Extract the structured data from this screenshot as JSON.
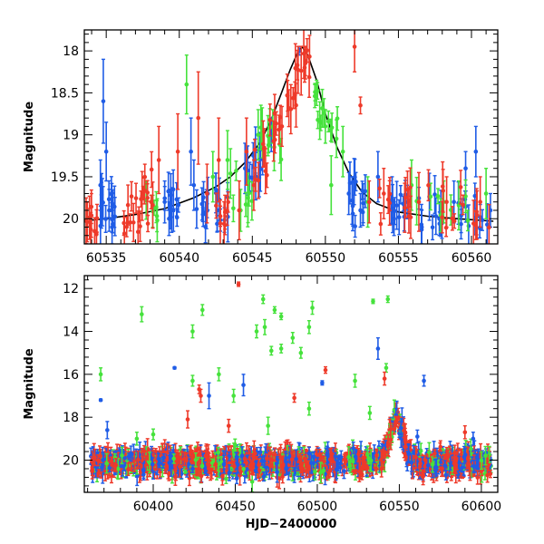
{
  "chart_data": [
    {
      "type": "scatter",
      "panel": "top",
      "title": "",
      "xlabel": "",
      "ylabel": "Magnitude",
      "xlim": [
        60533.5,
        60561.8
      ],
      "ylim": [
        20.3,
        17.75
      ],
      "y_inverted": true,
      "grid": false,
      "x_ticks": [
        60535,
        60540,
        60545,
        60550,
        60555,
        60560
      ],
      "x_tick_labels": [
        "60535",
        "60540",
        "60545",
        "60550",
        "60555",
        "60560"
      ],
      "y_ticks": [
        18,
        18.5,
        19,
        19.5,
        20
      ],
      "y_tick_labels": [
        "18",
        "18.5",
        "19",
        "19.5",
        "20"
      ],
      "colors": {
        "blue": "#1f5ce6",
        "green": "#46e23c",
        "red": "#ee3a2a",
        "model": "#000000"
      },
      "model_curve": {
        "x": [
          60533.8,
          60535,
          60537,
          60539,
          60541,
          60542.5,
          60543.5,
          60544.5,
          60545.5,
          60546.3,
          60547,
          60547.6,
          60548.1,
          60548.4,
          60548.8,
          60549.4,
          60550,
          60550.8,
          60551.6,
          60552.5,
          60553.5,
          60555,
          60557,
          60559,
          60561.5
        ],
        "y": [
          20.02,
          20.0,
          19.95,
          19.88,
          19.75,
          19.62,
          19.5,
          19.33,
          19.1,
          18.82,
          18.5,
          18.22,
          18.02,
          17.95,
          18.05,
          18.35,
          18.75,
          19.15,
          19.45,
          19.68,
          19.82,
          19.92,
          19.97,
          20.0,
          20.03
        ]
      },
      "series": [
        {
          "color": "blue",
          "points": [
            {
              "x": 60534.6,
              "y": 19.6,
              "err": 0.3
            },
            {
              "x": 60534.8,
              "y": 18.6,
              "err": 0.5
            },
            {
              "x": 60535.0,
              "y": 19.2,
              "err": 0.35
            },
            {
              "x": 60535.2,
              "y": 19.9,
              "err": 0.25
            },
            {
              "x": 60535.4,
              "y": 20.1,
              "err": 0.2
            },
            {
              "x": 60539.0,
              "y": 19.8,
              "err": 0.25
            },
            {
              "x": 60539.3,
              "y": 20.0,
              "err": 0.2
            },
            {
              "x": 60539.6,
              "y": 19.9,
              "err": 0.25
            },
            {
              "x": 60540.8,
              "y": 19.2,
              "err": 0.4
            },
            {
              "x": 60541.0,
              "y": 19.6,
              "err": 0.3
            },
            {
              "x": 60542.6,
              "y": 19.9,
              "err": 0.25
            },
            {
              "x": 60544.5,
              "y": 19.4,
              "err": 0.3
            },
            {
              "x": 60545.2,
              "y": 19.3,
              "err": 0.25
            },
            {
              "x": 60546.3,
              "y": 19.0,
              "err": 0.2
            },
            {
              "x": 60548.2,
              "y": 18.0,
              "err": 0.05
            },
            {
              "x": 60551.6,
              "y": 19.7,
              "err": 0.25
            },
            {
              "x": 60552.4,
              "y": 19.9,
              "err": 0.2
            },
            {
              "x": 60553.6,
              "y": 19.5,
              "err": 0.3
            },
            {
              "x": 60554.7,
              "y": 20.0,
              "err": 0.2
            },
            {
              "x": 60555.6,
              "y": 19.8,
              "err": 0.2
            },
            {
              "x": 60556.6,
              "y": 20.1,
              "err": 0.2
            },
            {
              "x": 60557.8,
              "y": 20.0,
              "err": 0.2
            },
            {
              "x": 60558.8,
              "y": 19.8,
              "err": 0.25
            },
            {
              "x": 60559.6,
              "y": 19.4,
              "err": 0.2
            },
            {
              "x": 60560.3,
              "y": 19.2,
              "err": 0.3
            },
            {
              "x": 60561.3,
              "y": 19.9,
              "err": 0.2
            }
          ],
          "clusters": [
            {
              "x0": 60534.4,
              "x1": 60535.6,
              "y0": 19.6,
              "y1": 20.15,
              "n": 14
            },
            {
              "x0": 60539.0,
              "x1": 60540.0,
              "y0": 19.6,
              "y1": 20.15,
              "n": 10
            },
            {
              "x0": 60541.0,
              "x1": 60542.0,
              "y0": 19.6,
              "y1": 20.1,
              "n": 10
            },
            {
              "x0": 60542.5,
              "x1": 60543.5,
              "y0": 19.5,
              "y1": 20.1,
              "n": 8
            },
            {
              "x0": 60544.5,
              "x1": 60546.0,
              "y0": 19.1,
              "y1": 19.7,
              "n": 10
            },
            {
              "x0": 60551.5,
              "x1": 60553.0,
              "y0": 19.5,
              "y1": 20.1,
              "n": 12
            },
            {
              "x0": 60554.0,
              "x1": 60555.5,
              "y0": 19.7,
              "y1": 20.15,
              "n": 10
            },
            {
              "x0": 60556.0,
              "x1": 60558.0,
              "y0": 19.7,
              "y1": 20.15,
              "n": 10
            },
            {
              "x0": 60559.0,
              "x1": 60561.5,
              "y0": 19.7,
              "y1": 20.15,
              "n": 12
            }
          ]
        },
        {
          "color": "green",
          "points": [
            {
              "x": 60540.5,
              "y": 18.4,
              "err": 0.35
            },
            {
              "x": 60542.3,
              "y": 19.5,
              "err": 0.3
            },
            {
              "x": 60543.3,
              "y": 19.3,
              "err": 0.35
            },
            {
              "x": 60544.2,
              "y": 19.9,
              "err": 0.25
            },
            {
              "x": 60545.4,
              "y": 19.0,
              "err": 0.3
            },
            {
              "x": 60546.4,
              "y": 18.9,
              "err": 0.2
            },
            {
              "x": 60549.4,
              "y": 18.5,
              "err": 0.15
            },
            {
              "x": 60550.0,
              "y": 18.9,
              "err": 0.2
            },
            {
              "x": 60550.4,
              "y": 19.6,
              "err": 0.35
            },
            {
              "x": 60551.2,
              "y": 19.2,
              "err": 0.3
            },
            {
              "x": 60552.9,
              "y": 19.8,
              "err": 0.3
            },
            {
              "x": 60555.9,
              "y": 19.6,
              "err": 0.3
            },
            {
              "x": 60558.1,
              "y": 19.8,
              "err": 0.25
            },
            {
              "x": 60561.0,
              "y": 19.7,
              "err": 0.3
            }
          ],
          "clusters": [
            {
              "x0": 60537.5,
              "x1": 60538.5,
              "y0": 19.7,
              "y1": 20.1,
              "n": 6
            },
            {
              "x0": 60543.5,
              "x1": 60545.0,
              "y0": 19.4,
              "y1": 20.0,
              "n": 8
            },
            {
              "x0": 60545.5,
              "x1": 60547.0,
              "y0": 18.9,
              "y1": 19.4,
              "n": 8
            },
            {
              "x0": 60549.2,
              "x1": 60550.2,
              "y0": 18.4,
              "y1": 18.9,
              "n": 8
            },
            {
              "x0": 60550.2,
              "x1": 60551.0,
              "y0": 18.8,
              "y1": 19.1,
              "n": 5
            },
            {
              "x0": 60556.0,
              "x1": 60560.0,
              "y0": 19.7,
              "y1": 20.1,
              "n": 8
            }
          ]
        },
        {
          "color": "red",
          "points": [
            {
              "x": 60538.6,
              "y": 19.3,
              "err": 0.4
            },
            {
              "x": 60539.9,
              "y": 19.2,
              "err": 0.45
            },
            {
              "x": 60541.3,
              "y": 18.8,
              "err": 0.55
            },
            {
              "x": 60541.9,
              "y": 19.7,
              "err": 0.35
            },
            {
              "x": 60542.7,
              "y": 19.3,
              "err": 0.5
            },
            {
              "x": 60544.1,
              "y": 19.9,
              "err": 0.35
            },
            {
              "x": 60544.6,
              "y": 19.2,
              "err": 0.4
            },
            {
              "x": 60545.1,
              "y": 19.6,
              "err": 0.3
            },
            {
              "x": 60552.0,
              "y": 17.95,
              "err": 0.3
            },
            {
              "x": 60552.4,
              "y": 18.65,
              "err": 0.1
            },
            {
              "x": 60553.0,
              "y": 19.8,
              "err": 0.25
            },
            {
              "x": 60554.0,
              "y": 19.7,
              "err": 0.3
            },
            {
              "x": 60556.4,
              "y": 19.8,
              "err": 0.35
            },
            {
              "x": 60558.3,
              "y": 19.8,
              "err": 0.3
            },
            {
              "x": 60560.6,
              "y": 19.8,
              "err": 0.3
            }
          ],
          "clusters": [
            {
              "x0": 60533.6,
              "x1": 60534.4,
              "y0": 19.8,
              "y1": 20.2,
              "n": 10
            },
            {
              "x0": 60536.2,
              "x1": 60537.6,
              "y0": 19.6,
              "y1": 20.2,
              "n": 14
            },
            {
              "x0": 60537.6,
              "x1": 60538.2,
              "y0": 19.4,
              "y1": 20.15,
              "n": 8
            },
            {
              "x0": 60542.5,
              "x1": 60543.5,
              "y0": 19.7,
              "y1": 20.15,
              "n": 8
            },
            {
              "x0": 60545.0,
              "x1": 60546.0,
              "y0": 19.1,
              "y1": 19.6,
              "n": 8
            },
            {
              "x0": 60546.2,
              "x1": 60547.2,
              "y0": 18.7,
              "y1": 19.1,
              "n": 8
            },
            {
              "x0": 60547.3,
              "x1": 60548.0,
              "y0": 18.2,
              "y1": 18.7,
              "n": 8
            },
            {
              "x0": 60548.0,
              "x1": 60549.0,
              "y0": 17.97,
              "y1": 18.35,
              "n": 10
            },
            {
              "x0": 60553.5,
              "x1": 60556.0,
              "y0": 19.6,
              "y1": 20.1,
              "n": 12
            },
            {
              "x0": 60557.0,
              "x1": 60561.6,
              "y0": 19.6,
              "y1": 20.2,
              "n": 14
            }
          ]
        }
      ]
    },
    {
      "type": "scatter",
      "panel": "bottom",
      "title": "",
      "xlabel": "HJD−2400000",
      "ylabel": "Magnitude",
      "xlim": [
        60358,
        60610
      ],
      "ylim": [
        21.5,
        11.4
      ],
      "y_inverted": true,
      "grid": false,
      "x_ticks": [
        60400,
        60450,
        60500,
        60550,
        60600
      ],
      "x_tick_labels": [
        "60400",
        "60450",
        "60500",
        "60550",
        "60600"
      ],
      "y_ticks": [
        12,
        14,
        16,
        18,
        20
      ],
      "y_tick_labels": [
        "12",
        "14",
        "16",
        "18",
        "20"
      ],
      "colors": {
        "blue": "#1f5ce6",
        "green": "#46e23c",
        "red": "#ee3a2a"
      },
      "band": {
        "y_center": 20.1,
        "y_spread": 0.45,
        "x_gaps": [
          [
            60435,
            60438
          ],
          [
            60512,
            60520
          ]
        ]
      },
      "series": [
        {
          "color": "green",
          "points": [
            {
              "x": 60368,
              "y": 16.0,
              "err": 0.3
            },
            {
              "x": 60393,
              "y": 13.2,
              "err": 0.35
            },
            {
              "x": 60390,
              "y": 19.0,
              "err": 0.3
            },
            {
              "x": 60424,
              "y": 14.0,
              "err": 0.3
            },
            {
              "x": 60424,
              "y": 16.3,
              "err": 0.25
            },
            {
              "x": 60430,
              "y": 13.0,
              "err": 0.25
            },
            {
              "x": 60440,
              "y": 16.0,
              "err": 0.3
            },
            {
              "x": 60449,
              "y": 17.0,
              "err": 0.3
            },
            {
              "x": 60463,
              "y": 14.0,
              "err": 0.3
            },
            {
              "x": 60467,
              "y": 12.5,
              "err": 0.2
            },
            {
              "x": 60468,
              "y": 13.8,
              "err": 0.35
            },
            {
              "x": 60472,
              "y": 14.9,
              "err": 0.2
            },
            {
              "x": 60474,
              "y": 13.0,
              "err": 0.15
            },
            {
              "x": 60478,
              "y": 13.3,
              "err": 0.15
            },
            {
              "x": 60478,
              "y": 14.8,
              "err": 0.2
            },
            {
              "x": 60485,
              "y": 14.3,
              "err": 0.25
            },
            {
              "x": 60490,
              "y": 15.0,
              "err": 0.25
            },
            {
              "x": 60495,
              "y": 13.8,
              "err": 0.3
            },
            {
              "x": 60495,
              "y": 17.6,
              "err": 0.3
            },
            {
              "x": 60497,
              "y": 12.9,
              "err": 0.3
            },
            {
              "x": 60523,
              "y": 16.3,
              "err": 0.3
            },
            {
              "x": 60532,
              "y": 17.8,
              "err": 0.3
            },
            {
              "x": 60534,
              "y": 12.6,
              "err": 0.1
            },
            {
              "x": 60542,
              "y": 15.7,
              "err": 0.2
            },
            {
              "x": 60543,
              "y": 12.5,
              "err": 0.15
            },
            {
              "x": 60470,
              "y": 18.4,
              "err": 0.4
            },
            {
              "x": 60400,
              "y": 18.8,
              "err": 0.25
            }
          ]
        },
        {
          "color": "blue",
          "points": [
            {
              "x": 60368,
              "y": 17.2,
              "err": 0.05
            },
            {
              "x": 60372,
              "y": 18.6,
              "err": 0.4
            },
            {
              "x": 60413,
              "y": 15.7,
              "err": 0.05
            },
            {
              "x": 60434,
              "y": 17.0,
              "err": 0.6
            },
            {
              "x": 60455,
              "y": 16.5,
              "err": 0.5
            },
            {
              "x": 60503,
              "y": 16.4,
              "err": 0.1
            },
            {
              "x": 60537,
              "y": 14.8,
              "err": 0.5
            },
            {
              "x": 60565,
              "y": 16.3,
              "err": 0.25
            },
            {
              "x": 60551,
              "y": 18.5,
              "err": 0.3
            },
            {
              "x": 60561,
              "y": 18.9,
              "err": 0.3
            },
            {
              "x": 60595,
              "y": 19.0,
              "err": 0.3
            }
          ]
        },
        {
          "color": "red",
          "points": [
            {
              "x": 60421,
              "y": 18.1,
              "err": 0.4
            },
            {
              "x": 60428,
              "y": 16.7,
              "err": 0.2
            },
            {
              "x": 60429,
              "y": 17.0,
              "err": 0.3
            },
            {
              "x": 60452,
              "y": 11.8,
              "err": 0.1
            },
            {
              "x": 60486,
              "y": 17.1,
              "err": 0.2
            },
            {
              "x": 60505,
              "y": 15.8,
              "err": 0.15
            },
            {
              "x": 60541,
              "y": 16.2,
              "err": 0.3
            },
            {
              "x": 60548,
              "y": 18.2,
              "err": 0.2
            },
            {
              "x": 60446,
              "y": 18.4,
              "err": 0.3
            },
            {
              "x": 60590,
              "y": 18.7,
              "err": 0.3
            }
          ]
        }
      ],
      "outburst": {
        "x_peak": 60548.3,
        "y_peak": 18.0,
        "y_base": 20.0,
        "halfwidth": 6
      }
    }
  ]
}
